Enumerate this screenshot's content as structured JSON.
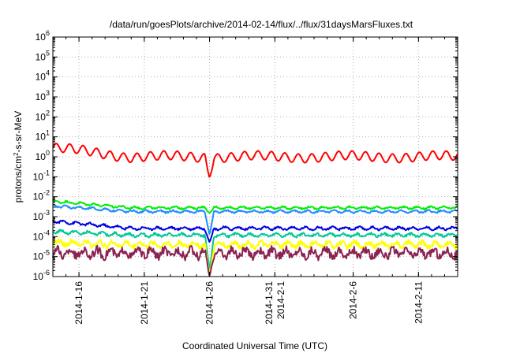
{
  "chart_data": {
    "type": "line",
    "title": "/data/run/goesPlots/archive/2014-02-14/flux/../flux/31daysMarsFluxes.txt",
    "xlabel": "Coordinated Universal Time (UTC)",
    "ylabel_main": "protons/cm",
    "ylabel_sup": "2",
    "ylabel_tail": "-s-sr-MeV",
    "yscale": "log",
    "ylim": [
      1e-06,
      1000000.0
    ],
    "xlim": [
      "2014-01-14",
      "2014-02-14"
    ],
    "grid": true,
    "y_ticks": [
      {
        "exp": -6,
        "base": "10",
        "sup": "-6"
      },
      {
        "exp": -5,
        "base": "10",
        "sup": "-5"
      },
      {
        "exp": -4,
        "base": "10",
        "sup": "-4"
      },
      {
        "exp": -3,
        "base": "10",
        "sup": "-3"
      },
      {
        "exp": -2,
        "base": "10",
        "sup": "-2"
      },
      {
        "exp": -1,
        "base": "10",
        "sup": "-1"
      },
      {
        "exp": 0,
        "base": "10",
        "sup": "0"
      },
      {
        "exp": 1,
        "base": "10",
        "sup": "1"
      },
      {
        "exp": 2,
        "base": "10",
        "sup": "2"
      },
      {
        "exp": 3,
        "base": "10",
        "sup": "3"
      },
      {
        "exp": 4,
        "base": "10",
        "sup": "4"
      },
      {
        "exp": 5,
        "base": "10",
        "sup": "5"
      },
      {
        "exp": 6,
        "base": "10",
        "sup": "6"
      }
    ],
    "x_ticks": [
      {
        "date": "2014-01-16",
        "lines": [
          "2014-1-16"
        ]
      },
      {
        "date": "2014-01-21",
        "lines": [
          "2014-1-21"
        ]
      },
      {
        "date": "2014-01-26",
        "lines": [
          "2014-1-26"
        ]
      },
      {
        "date": "2014-01-31",
        "lines": [
          "2014-1-31",
          "2014-2-1"
        ]
      },
      {
        "date": "2014-02-06",
        "lines": [
          "2014-2-6"
        ]
      },
      {
        "date": "2014-02-11",
        "lines": [
          "2014-2-11"
        ]
      }
    ],
    "dip_date": "2014-01-26",
    "series": [
      {
        "color": "#ff0000",
        "level": 1.0,
        "amp": 0.22,
        "noise": 0.05,
        "wavy": true,
        "start": 2.8,
        "dip": 0.09
      },
      {
        "color": "#00ee00",
        "level": 0.0028,
        "amp": 0.05,
        "noise": 0.04,
        "wavy": false,
        "start": 0.006,
        "dip": 0.0015
      },
      {
        "color": "#1e8cff",
        "level": 0.0018,
        "amp": 0.05,
        "noise": 0.04,
        "wavy": false,
        "start": 0.0035,
        "dip": 0.00012
      },
      {
        "color": "#0000dd",
        "level": 0.00026,
        "amp": 0.06,
        "noise": 0.05,
        "wavy": false,
        "start": 0.0006,
        "dip": 5e-05
      },
      {
        "color": "#00c896",
        "level": 0.00012,
        "amp": 0.07,
        "noise": 0.06,
        "wavy": false,
        "start": 0.00018,
        "dip": 2e-06
      },
      {
        "color": "#ffff00",
        "level": 4e-05,
        "amp": 0.12,
        "noise": 0.12,
        "wavy": false,
        "start": 5e-05,
        "dip": 1e-06
      },
      {
        "color": "#8b2252",
        "level": 1.5e-05,
        "amp": 0.18,
        "noise": 0.2,
        "wavy": false,
        "start": 1.5e-05,
        "dip": 1e-06
      }
    ]
  }
}
